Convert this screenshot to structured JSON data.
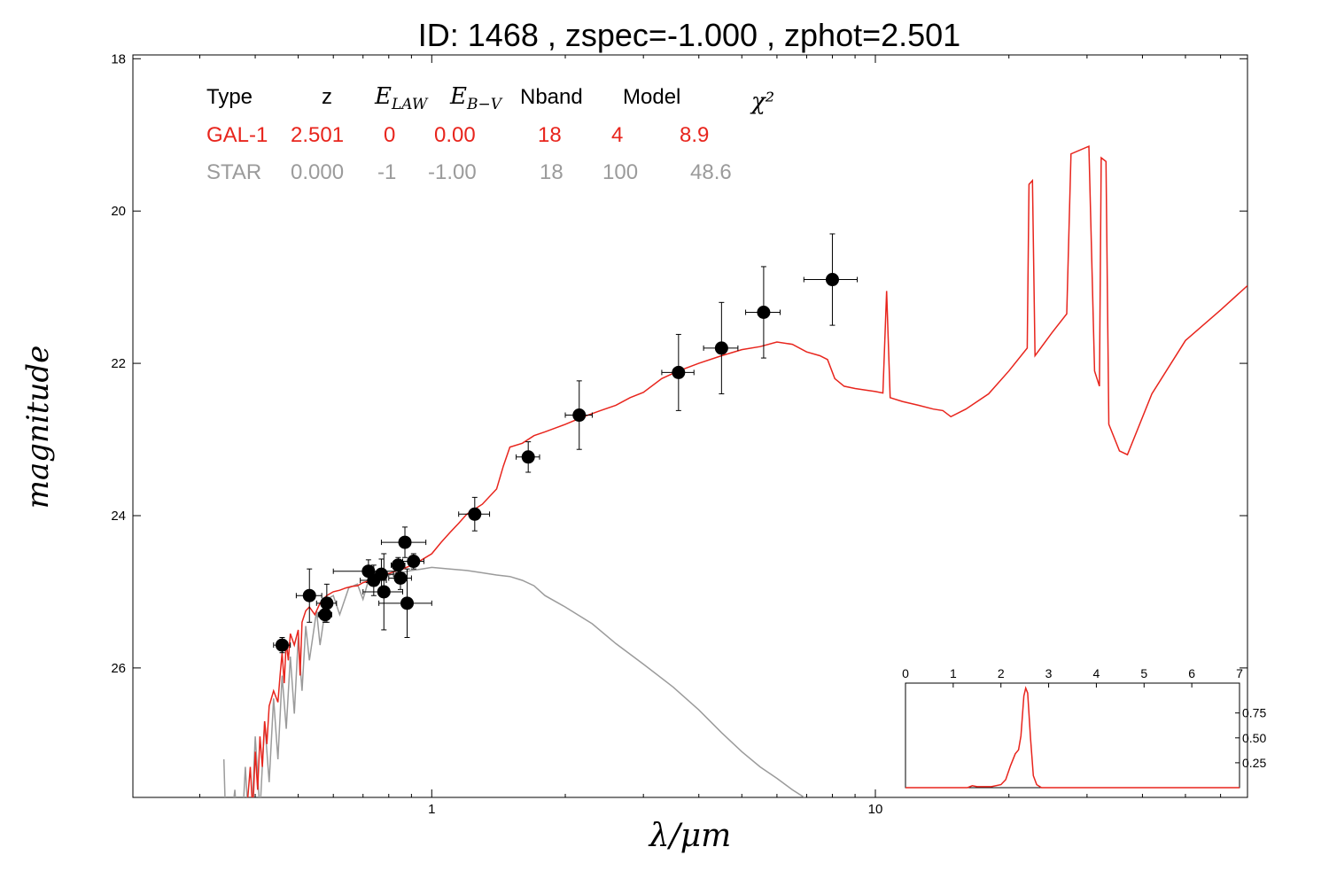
{
  "chart_data": {
    "type": "scatter",
    "title": "ID:  1468  , zspec=-1.000 , zphot=2.501",
    "xlabel": "λ/μm",
    "ylabel": "magnitude",
    "x_scale": "log",
    "xlim": [
      0.212,
      69
    ],
    "ylim": [
      27.7,
      17.95
    ],
    "y_inverted": true,
    "x_ticks": [
      1,
      10
    ],
    "x_tick_labels": [
      "1",
      "10"
    ],
    "y_ticks": [
      18,
      20,
      22,
      24,
      26
    ],
    "y_tick_labels": [
      "18",
      "20",
      "22",
      "24",
      "26"
    ],
    "grid": false,
    "info_table": {
      "headers": [
        "Type",
        "z",
        "E_LAW",
        "E_B−V",
        "Nband",
        "Model",
        "χ²"
      ],
      "rows": [
        {
          "cells": [
            "GAL-1",
            "2.501",
            "0",
            "0.00",
            "18",
            "4",
            "8.9"
          ],
          "color": "#e8251d"
        },
        {
          "cells": [
            "STAR",
            "0.000",
            "-1",
            "-1.00",
            "18",
            "100",
            "48.6"
          ],
          "color": "#9b9b9b"
        }
      ]
    },
    "series": [
      {
        "role": "observed",
        "color": "#000000",
        "points": [
          {
            "x": 0.46,
            "y": 25.7,
            "xerr": 0.02,
            "yerr": 0.1
          },
          {
            "x": 0.53,
            "y": 25.05,
            "xerr": 0.035,
            "yerr": 0.35
          },
          {
            "x": 0.58,
            "y": 25.15,
            "xerr": 0.03,
            "yerr": 0.25
          },
          {
            "x": 0.575,
            "y": 25.3,
            "xerr": 0.02,
            "yerr": 0.1
          },
          {
            "x": 0.72,
            "y": 24.73,
            "xerr": 0.12,
            "yerr": 0.15
          },
          {
            "x": 0.74,
            "y": 24.85,
            "xerr": 0.05,
            "yerr": 0.2
          },
          {
            "x": 0.77,
            "y": 24.77,
            "xerr": 0.05,
            "yerr": 0.2
          },
          {
            "x": 0.78,
            "y": 25.0,
            "xerr": 0.08,
            "yerr": 0.5
          },
          {
            "x": 0.84,
            "y": 24.65,
            "xerr": 0.03,
            "yerr": 0.1
          },
          {
            "x": 0.85,
            "y": 24.82,
            "xerr": 0.05,
            "yerr": 0.15
          },
          {
            "x": 0.87,
            "y": 24.35,
            "xerr": 0.1,
            "yerr": 0.2
          },
          {
            "x": 0.88,
            "y": 25.15,
            "xerr": 0.12,
            "yerr": 0.45
          },
          {
            "x": 0.91,
            "y": 24.6,
            "xerr": 0.05,
            "yerr": 0.1
          },
          {
            "x": 1.25,
            "y": 23.98,
            "xerr": 0.1,
            "yerr": 0.22
          },
          {
            "x": 1.65,
            "y": 23.23,
            "xerr": 0.1,
            "yerr": 0.2
          },
          {
            "x": 2.15,
            "y": 22.68,
            "xerr": 0.15,
            "yerr": 0.45
          },
          {
            "x": 3.6,
            "y": 22.12,
            "xerr": 0.3,
            "yerr": 0.5
          },
          {
            "x": 4.5,
            "y": 21.8,
            "xerr": 0.4,
            "yerr": 0.6
          },
          {
            "x": 5.6,
            "y": 21.33,
            "xerr": 0.5,
            "yerr": 0.6
          },
          {
            "x": 8.0,
            "y": 20.9,
            "xerr": 1.1,
            "yerr": 0.6
          }
        ]
      },
      {
        "role": "galaxy-model",
        "color": "#e8251d",
        "points": [
          [
            0.385,
            27.7
          ],
          [
            0.39,
            27.3
          ],
          [
            0.395,
            27.9
          ],
          [
            0.4,
            27.1
          ],
          [
            0.405,
            27.6
          ],
          [
            0.41,
            26.9
          ],
          [
            0.415,
            27.3
          ],
          [
            0.42,
            26.7
          ],
          [
            0.425,
            27.0
          ],
          [
            0.43,
            26.5
          ],
          [
            0.44,
            26.3
          ],
          [
            0.45,
            26.45
          ],
          [
            0.455,
            26.1
          ],
          [
            0.46,
            25.8
          ],
          [
            0.465,
            26.2
          ],
          [
            0.47,
            25.65
          ],
          [
            0.475,
            25.9
          ],
          [
            0.48,
            25.55
          ],
          [
            0.49,
            25.7
          ],
          [
            0.5,
            25.5
          ],
          [
            0.505,
            26.1
          ],
          [
            0.51,
            25.4
          ],
          [
            0.52,
            25.25
          ],
          [
            0.53,
            25.2
          ],
          [
            0.545,
            25.3
          ],
          [
            0.56,
            25.15
          ],
          [
            0.58,
            25.05
          ],
          [
            0.6,
            25.0
          ],
          [
            0.62,
            24.98
          ],
          [
            0.64,
            24.95
          ],
          [
            0.66,
            24.93
          ],
          [
            0.68,
            24.92
          ],
          [
            0.7,
            24.88
          ],
          [
            0.72,
            24.86
          ],
          [
            0.74,
            24.85
          ],
          [
            0.76,
            24.8
          ],
          [
            0.78,
            24.78
          ],
          [
            0.8,
            24.76
          ],
          [
            0.83,
            24.73
          ],
          [
            0.86,
            24.7
          ],
          [
            0.9,
            24.65
          ],
          [
            0.95,
            24.58
          ],
          [
            1.0,
            24.5
          ],
          [
            1.05,
            24.35
          ],
          [
            1.1,
            24.22
          ],
          [
            1.15,
            24.1
          ],
          [
            1.2,
            23.98
          ],
          [
            1.3,
            23.85
          ],
          [
            1.4,
            23.65
          ],
          [
            1.45,
            23.35
          ],
          [
            1.5,
            23.1
          ],
          [
            1.6,
            23.05
          ],
          [
            1.7,
            22.95
          ],
          [
            1.8,
            22.9
          ],
          [
            1.9,
            22.85
          ],
          [
            2.0,
            22.8
          ],
          [
            2.2,
            22.7
          ],
          [
            2.4,
            22.62
          ],
          [
            2.6,
            22.55
          ],
          [
            2.8,
            22.45
          ],
          [
            3.0,
            22.38
          ],
          [
            3.3,
            22.2
          ],
          [
            3.6,
            22.1
          ],
          [
            4.0,
            22.0
          ],
          [
            4.5,
            21.9
          ],
          [
            5.0,
            21.82
          ],
          [
            5.5,
            21.78
          ],
          [
            6.0,
            21.72
          ],
          [
            6.5,
            21.75
          ],
          [
            7.0,
            21.85
          ],
          [
            7.5,
            21.9
          ],
          [
            7.8,
            21.95
          ],
          [
            8.1,
            22.2
          ],
          [
            8.5,
            22.3
          ],
          [
            9.0,
            22.33
          ],
          [
            9.5,
            22.35
          ],
          [
            10.0,
            22.37
          ],
          [
            10.4,
            22.39
          ],
          [
            10.6,
            21.05
          ],
          [
            10.8,
            22.45
          ],
          [
            11.5,
            22.5
          ],
          [
            12.5,
            22.55
          ],
          [
            13.5,
            22.6
          ],
          [
            14.2,
            22.62
          ],
          [
            14.8,
            22.7
          ],
          [
            16.0,
            22.6
          ],
          [
            18.0,
            22.4
          ],
          [
            20.0,
            22.1
          ],
          [
            22.0,
            21.8
          ],
          [
            22.2,
            19.65
          ],
          [
            22.6,
            19.6
          ],
          [
            22.9,
            21.9
          ],
          [
            25.0,
            21.6
          ],
          [
            27.0,
            21.35
          ],
          [
            27.6,
            19.25
          ],
          [
            30.3,
            19.15
          ],
          [
            31.2,
            22.1
          ],
          [
            32.0,
            22.3
          ],
          [
            32.3,
            19.3
          ],
          [
            33.1,
            19.35
          ],
          [
            33.6,
            22.8
          ],
          [
            35.5,
            23.15
          ],
          [
            37.0,
            23.2
          ],
          [
            42.0,
            22.4
          ],
          [
            50.0,
            21.7
          ],
          [
            60.0,
            21.3
          ],
          [
            69.0,
            20.98
          ]
        ]
      },
      {
        "role": "star-model",
        "color": "#9b9b9b",
        "points": [
          [
            0.34,
            27.2
          ],
          [
            0.345,
            28.5
          ],
          [
            0.36,
            27.6
          ],
          [
            0.37,
            28.6
          ],
          [
            0.38,
            27.3
          ],
          [
            0.39,
            28.4
          ],
          [
            0.4,
            26.9
          ],
          [
            0.41,
            27.9
          ],
          [
            0.42,
            26.7
          ],
          [
            0.43,
            27.5
          ],
          [
            0.44,
            26.4
          ],
          [
            0.45,
            27.2
          ],
          [
            0.46,
            26.1
          ],
          [
            0.47,
            26.8
          ],
          [
            0.48,
            25.85
          ],
          [
            0.49,
            26.6
          ],
          [
            0.5,
            25.6
          ],
          [
            0.51,
            26.3
          ],
          [
            0.52,
            25.45
          ],
          [
            0.53,
            25.9
          ],
          [
            0.55,
            25.25
          ],
          [
            0.56,
            25.7
          ],
          [
            0.58,
            25.1
          ],
          [
            0.6,
            25.05
          ],
          [
            0.62,
            25.3
          ],
          [
            0.65,
            24.95
          ],
          [
            0.68,
            24.9
          ],
          [
            0.7,
            25.1
          ],
          [
            0.72,
            24.85
          ],
          [
            0.75,
            24.82
          ],
          [
            0.8,
            24.78
          ],
          [
            0.85,
            24.75
          ],
          [
            0.9,
            24.72
          ],
          [
            0.95,
            24.7
          ],
          [
            1.0,
            24.68
          ],
          [
            1.1,
            24.7
          ],
          [
            1.2,
            24.72
          ],
          [
            1.3,
            24.75
          ],
          [
            1.4,
            24.78
          ],
          [
            1.5,
            24.8
          ],
          [
            1.6,
            24.85
          ],
          [
            1.7,
            24.92
          ],
          [
            1.8,
            25.05
          ],
          [
            2.0,
            25.2
          ],
          [
            2.3,
            25.42
          ],
          [
            2.6,
            25.68
          ],
          [
            3.0,
            25.95
          ],
          [
            3.5,
            26.25
          ],
          [
            4.0,
            26.55
          ],
          [
            4.5,
            26.85
          ],
          [
            5.0,
            27.1
          ],
          [
            5.5,
            27.3
          ],
          [
            6.0,
            27.45
          ],
          [
            6.5,
            27.6
          ],
          [
            7.0,
            27.72
          ]
        ]
      }
    ],
    "inset": {
      "type": "line",
      "xlim": [
        0,
        7
      ],
      "ylim": [
        0,
        1.05
      ],
      "x_ticks": [
        0,
        1,
        2,
        3,
        4,
        5,
        6,
        7
      ],
      "x_tick_labels": [
        "0",
        "1",
        "2",
        "3",
        "4",
        "5",
        "6",
        "7"
      ],
      "y_ticks": [
        0.25,
        0.5,
        0.75
      ],
      "y_tick_labels": [
        "0.25",
        "0.50",
        "0.75"
      ],
      "color": "#e8251d",
      "points": [
        [
          0,
          0.0
        ],
        [
          1.3,
          0.0
        ],
        [
          1.4,
          0.02
        ],
        [
          1.5,
          0.01
        ],
        [
          1.8,
          0.01
        ],
        [
          2.0,
          0.03
        ],
        [
          2.1,
          0.08
        ],
        [
          2.2,
          0.22
        ],
        [
          2.3,
          0.34
        ],
        [
          2.37,
          0.38
        ],
        [
          2.42,
          0.52
        ],
        [
          2.48,
          0.92
        ],
        [
          2.52,
          1.0
        ],
        [
          2.56,
          0.95
        ],
        [
          2.62,
          0.5
        ],
        [
          2.68,
          0.12
        ],
        [
          2.75,
          0.03
        ],
        [
          2.85,
          0.0
        ],
        [
          7,
          0.0
        ]
      ]
    }
  }
}
